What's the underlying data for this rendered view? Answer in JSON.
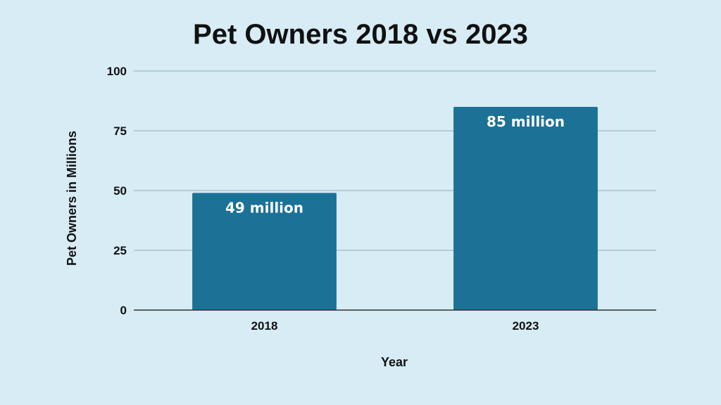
{
  "chart_data": {
    "type": "bar",
    "title": "Pet Owners 2018 vs 2023",
    "xlabel": "Year",
    "ylabel": "Pet Owners in Millions",
    "categories": [
      "2018",
      "2023"
    ],
    "values": [
      49,
      85
    ],
    "data_labels": [
      "49 million",
      "85 million"
    ],
    "ylim": [
      0,
      100
    ],
    "yticks": [
      0,
      25,
      50,
      75,
      100
    ],
    "grid": true,
    "legend": "none",
    "colors": {
      "background": "#d7ecf5",
      "bar": "#1b7196",
      "grid": "#9fb8c4",
      "text": "#111111",
      "data_label": "#ffffff"
    }
  }
}
